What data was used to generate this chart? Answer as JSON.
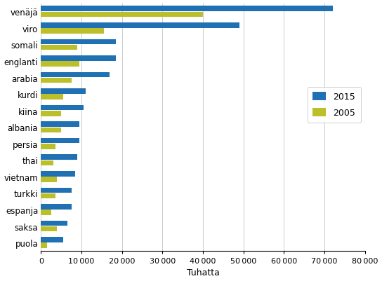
{
  "categories": [
    "venäjä",
    "viro",
    "somali",
    "englanti",
    "arabia",
    "kurdi",
    "kiina",
    "albania",
    "persia",
    "thai",
    "vietnam",
    "turkki",
    "espanja",
    "saksa",
    "puola"
  ],
  "values_2015": [
    72000,
    49000,
    18500,
    18500,
    17000,
    11000,
    10500,
    9500,
    9500,
    9000,
    8500,
    7500,
    7500,
    6500,
    5500
  ],
  "values_2005": [
    40000,
    15500,
    9000,
    9500,
    7500,
    5500,
    5000,
    5000,
    3500,
    3000,
    4000,
    3500,
    2500,
    4000,
    1500
  ],
  "color_2015": "#2070B4",
  "color_2005": "#BBBF2A",
  "xlabel": "Tuhatta",
  "legend_2015": "2015",
  "legend_2005": "2005",
  "xlim": [
    0,
    80000
  ],
  "xticks": [
    0,
    10000,
    20000,
    30000,
    40000,
    50000,
    60000,
    70000,
    80000
  ],
  "xtick_labels": [
    "0",
    "10 000",
    "20 000",
    "30 000",
    "40 000",
    "50 000",
    "60 000",
    "70 000",
    "80 000"
  ],
  "background_color": "#ffffff",
  "grid_color": "#cccccc",
  "bar_height": 0.32,
  "bar_gap": 0.03
}
